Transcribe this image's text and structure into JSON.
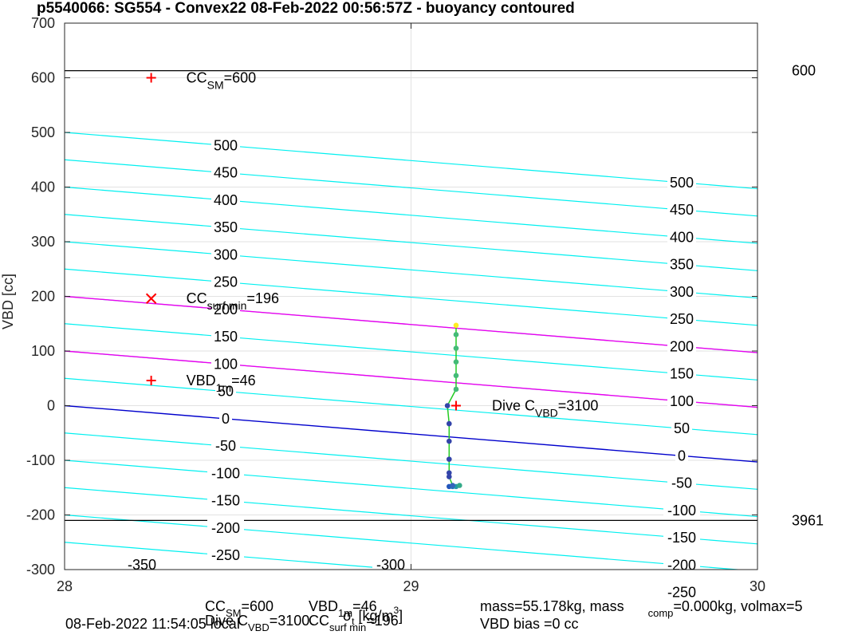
{
  "chart_data": {
    "type": "line",
    "title": "p5540066: SG554 - Convex22 08-Feb-2022 00:56:57Z - buoyancy contoured",
    "ylabel": "VBD [cc]",
    "xlim": [
      28,
      30
    ],
    "ylim": [
      -300,
      700
    ],
    "xticks": [
      "28",
      "29",
      "30"
    ],
    "yticks": [
      "-300",
      "-200",
      "-100",
      "0",
      "100",
      "200",
      "300",
      "400",
      "500",
      "600",
      "700"
    ],
    "grid": true,
    "contour_slope_cc_per_kgm3": -51.5,
    "contours": {
      "cyan_values": [
        -350,
        -300,
        -250,
        -200,
        -150,
        -100,
        -50,
        50,
        100,
        150,
        200,
        250,
        300,
        350,
        400,
        450,
        500
      ],
      "magenta_values": [
        200,
        100
      ],
      "blue_value": 0,
      "left_labels": [
        {
          "text": "500",
          "value": 500
        },
        {
          "text": "450",
          "value": 450
        },
        {
          "text": "400",
          "value": 400
        },
        {
          "text": "350",
          "value": 350
        },
        {
          "text": "300",
          "value": 300
        },
        {
          "text": "250",
          "value": 250
        },
        {
          "text": "200",
          "value": 200
        },
        {
          "text": "150",
          "value": 150
        },
        {
          "text": "100",
          "value": 100
        },
        {
          "text": "50",
          "value": 50
        },
        {
          "text": "0",
          "value": 0
        },
        {
          "text": "-50",
          "value": -50
        },
        {
          "text": "-100",
          "value": -100
        },
        {
          "text": "-150",
          "value": -150
        },
        {
          "text": "-200",
          "value": -200
        },
        {
          "text": "-250",
          "value": -250
        }
      ],
      "right_labels": [
        {
          "text": "500",
          "value": 500
        },
        {
          "text": "450",
          "value": 450
        },
        {
          "text": "400",
          "value": 400
        },
        {
          "text": "350",
          "value": 350
        },
        {
          "text": "300",
          "value": 300
        },
        {
          "text": "250",
          "value": 250
        },
        {
          "text": "200",
          "value": 200
        },
        {
          "text": "150",
          "value": 150
        },
        {
          "text": "100",
          "value": 100
        },
        {
          "text": "50",
          "value": 50
        },
        {
          "text": "0",
          "value": 0
        },
        {
          "text": "-50",
          "value": -50
        },
        {
          "text": "-100",
          "value": -100
        },
        {
          "text": "-150",
          "value": -150
        },
        {
          "text": "-200",
          "value": -200
        },
        {
          "text": "-250",
          "value": -250
        }
      ],
      "bottom_labels": [
        {
          "text": "-350",
          "value": -350
        },
        {
          "text": "-300",
          "value": -300
        }
      ]
    },
    "reference_lines": [
      {
        "y": 613,
        "label": "600",
        "color": "#000000"
      },
      {
        "y": -210,
        "label": "3961",
        "color": "#000000"
      }
    ],
    "markers": [
      {
        "x": 28.25,
        "y": 600,
        "symbol": "+",
        "color": "#ff0000",
        "label_main": "CC",
        "label_sub": "SM",
        "label_value": "=600"
      },
      {
        "x": 28.25,
        "y": 196,
        "symbol": "x",
        "color": "#ff0000",
        "label_main": "CC",
        "label_sub": "surf min",
        "label_value": "=196"
      },
      {
        "x": 28.25,
        "y": 46,
        "symbol": "+",
        "color": "#ff0000",
        "label_main": "VBD",
        "label_sub": "1m",
        "label_value": "=46"
      },
      {
        "x": 29.13,
        "y": 0,
        "symbol": "+",
        "color": "#ff0000",
        "label_main": "Dive C",
        "label_sub": "VBD",
        "label_value": "=3100"
      }
    ],
    "profile_line_color": "#22cc22",
    "profile": [
      {
        "x": 29.11,
        "y": -148,
        "color": "#2255bb"
      },
      {
        "x": 29.12,
        "y": -148,
        "color": "#2277bb"
      },
      {
        "x": 29.13,
        "y": -148,
        "color": "#2299aa"
      },
      {
        "x": 29.14,
        "y": -146,
        "color": "#33aa88"
      },
      {
        "x": 29.12,
        "y": -146,
        "color": "#3366bb"
      },
      {
        "x": 29.11,
        "y": -130,
        "color": "#3344aa"
      },
      {
        "x": 29.11,
        "y": -123,
        "color": "#3344aa"
      },
      {
        "x": 29.11,
        "y": -98,
        "color": "#3344aa"
      },
      {
        "x": 29.11,
        "y": -65,
        "color": "#3344aa"
      },
      {
        "x": 29.11,
        "y": -33,
        "color": "#3344aa"
      },
      {
        "x": 29.105,
        "y": 0,
        "color": "#3344aa"
      },
      {
        "x": 29.13,
        "y": 30,
        "color": "#44bb77"
      },
      {
        "x": 29.13,
        "y": 55,
        "color": "#44bb77"
      },
      {
        "x": 29.13,
        "y": 80,
        "color": "#44bb77"
      },
      {
        "x": 29.13,
        "y": 105,
        "color": "#44bb77"
      },
      {
        "x": 29.13,
        "y": 130,
        "color": "#44bb77"
      },
      {
        "x": 29.13,
        "y": 147,
        "color": "#ffee22"
      }
    ],
    "footer": {
      "cc_sm_main": "CC",
      "cc_sm_sub": "SM",
      "cc_sm_value": "=600",
      "vbd_main": "VBD",
      "vbd_sub": "1m",
      "vbd_value": "=46",
      "mass_text": "mass=55.178kg, mass",
      "comp_sub": "comp",
      "comp_text": "=0.000kg, volmax=5",
      "date_text": "08-Feb-2022 11:54:05 local",
      "dive_main": "Dive C",
      "dive_sub": "VBD",
      "dive_value": "=3100",
      "ccsurf_main": "CC",
      "ccsurf_sub": "surf min",
      "ccsurf_value": "=196",
      "xlabel": "σ_t [kg/m^3]",
      "bias_text": "VBD bias =0 cc"
    }
  }
}
